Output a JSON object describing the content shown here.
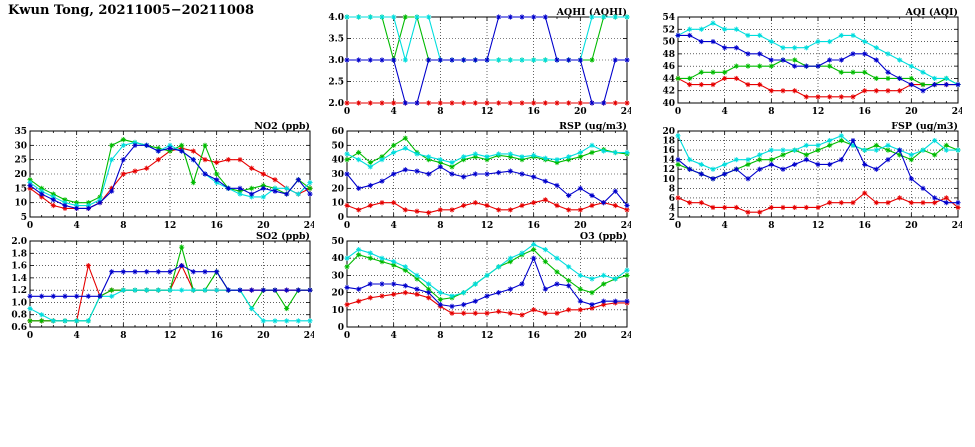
{
  "page": {
    "title": "Kwun Tong, 20211005−20211008"
  },
  "colors": {
    "red": "#e60000",
    "green": "#00bb00",
    "cyan": "#00dddd",
    "blue": "#0000cc"
  },
  "chart_data": [
    {
      "id": "aqhi",
      "type": "line",
      "title": "AQHI (AQHI)",
      "xlabel": "",
      "ylabel": "",
      "xlim": [
        0,
        24
      ],
      "xticks": [
        0,
        4,
        8,
        12,
        16,
        20,
        24
      ],
      "ylim": [
        2.0,
        4.0
      ],
      "yticks": [
        2.0,
        2.5,
        3.0,
        3.5,
        4.0
      ],
      "ydec": 1,
      "grid": true,
      "legend": "none",
      "series": [
        {
          "name": "red",
          "color": "#e60000",
          "values": [
            2,
            2,
            2,
            2,
            2,
            2,
            2,
            2,
            2,
            2,
            2,
            2,
            2,
            2,
            2,
            2,
            2,
            2,
            2,
            2,
            2,
            2,
            2,
            2,
            2
          ]
        },
        {
          "name": "green",
          "color": "#00bb00",
          "values": [
            4,
            4,
            4,
            4,
            3,
            4,
            4,
            3,
            3,
            3,
            3,
            3,
            3,
            3,
            3,
            3,
            3,
            3,
            3,
            3,
            3,
            3,
            4,
            4,
            4
          ]
        },
        {
          "name": "cyan",
          "color": "#00dddd",
          "values": [
            4,
            4,
            4,
            4,
            4,
            3,
            4,
            4,
            3,
            3,
            3,
            3,
            3,
            3,
            3,
            3,
            3,
            3,
            3,
            3,
            3,
            4,
            4,
            4,
            4
          ]
        },
        {
          "name": "blue",
          "color": "#0000cc",
          "values": [
            3,
            3,
            3,
            3,
            3,
            2,
            2,
            3,
            3,
            3,
            3,
            3,
            3,
            4,
            4,
            4,
            4,
            4,
            3,
            3,
            3,
            2,
            2,
            3,
            3
          ]
        }
      ]
    },
    {
      "id": "aqi",
      "type": "line",
      "title": "AQI (AQI)",
      "xlabel": "",
      "ylabel": "",
      "xlim": [
        0,
        24
      ],
      "xticks": [
        0,
        4,
        8,
        12,
        16,
        20,
        24
      ],
      "ylim": [
        40,
        54
      ],
      "yticks": [
        40,
        42,
        44,
        46,
        48,
        50,
        52,
        54
      ],
      "ydec": 0,
      "grid": true,
      "legend": "none",
      "series": [
        {
          "name": "red",
          "color": "#e60000",
          "values": [
            44,
            43,
            43,
            43,
            44,
            44,
            43,
            43,
            42,
            42,
            42,
            41,
            41,
            41,
            41,
            41,
            42,
            42,
            42,
            42,
            43,
            43,
            43,
            43,
            43
          ]
        },
        {
          "name": "green",
          "color": "#00bb00",
          "values": [
            44,
            44,
            45,
            45,
            45,
            46,
            46,
            46,
            46,
            47,
            47,
            46,
            46,
            46,
            45,
            45,
            45,
            44,
            44,
            44,
            44,
            43,
            43,
            44,
            43
          ]
        },
        {
          "name": "cyan",
          "color": "#00dddd",
          "values": [
            51,
            52,
            52,
            53,
            52,
            52,
            51,
            51,
            50,
            49,
            49,
            49,
            50,
            50,
            51,
            51,
            50,
            49,
            48,
            47,
            46,
            45,
            44,
            44,
            43
          ]
        },
        {
          "name": "blue",
          "color": "#0000cc",
          "values": [
            51,
            51,
            50,
            50,
            49,
            49,
            48,
            48,
            47,
            47,
            46,
            46,
            46,
            47,
            47,
            48,
            48,
            47,
            45,
            44,
            43,
            42,
            43,
            43,
            43
          ]
        }
      ]
    },
    {
      "id": "no2",
      "type": "line",
      "title": "NO2 (ppb)",
      "xlabel": "",
      "ylabel": "",
      "xlim": [
        0,
        24
      ],
      "xticks": [
        0,
        4,
        8,
        12,
        16,
        20,
        24
      ],
      "ylim": [
        5,
        35
      ],
      "yticks": [
        5,
        10,
        15,
        20,
        25,
        30,
        35
      ],
      "ydec": 0,
      "grid": true,
      "legend": "none",
      "series": [
        {
          "name": "red",
          "color": "#e60000",
          "values": [
            15,
            12,
            9,
            8,
            8,
            8,
            10,
            15,
            20,
            21,
            22,
            25,
            28,
            29,
            28,
            25,
            24,
            25,
            25,
            22,
            20,
            18,
            15,
            13,
            15
          ]
        },
        {
          "name": "green",
          "color": "#00bb00",
          "values": [
            18,
            15,
            13,
            11,
            10,
            10,
            12,
            30,
            32,
            31,
            30,
            29,
            28,
            30,
            17,
            30,
            20,
            15,
            14,
            15,
            16,
            15,
            13,
            18,
            15
          ]
        },
        {
          "name": "cyan",
          "color": "#00dddd",
          "values": [
            17,
            14,
            12,
            10,
            9,
            9,
            11,
            25,
            30,
            31,
            30,
            28,
            30,
            28,
            25,
            20,
            17,
            15,
            13,
            12,
            12,
            15,
            15,
            13,
            17
          ]
        },
        {
          "name": "blue",
          "color": "#0000cc",
          "values": [
            16,
            13,
            11,
            9,
            8,
            8,
            10,
            14,
            25,
            30,
            30,
            28,
            29,
            28,
            25,
            20,
            18,
            15,
            15,
            13,
            15,
            14,
            13,
            18,
            13
          ]
        }
      ]
    },
    {
      "id": "rsp",
      "type": "line",
      "title": "RSP (ug/m3)",
      "xlabel": "",
      "ylabel": "",
      "xlim": [
        0,
        24
      ],
      "xticks": [
        0,
        4,
        8,
        12,
        16,
        20,
        24
      ],
      "ylim": [
        0,
        60
      ],
      "yticks": [
        0,
        10,
        20,
        30,
        40,
        50,
        60
      ],
      "ydec": 0,
      "grid": true,
      "legend": "none",
      "series": [
        {
          "name": "red",
          "color": "#e60000",
          "values": [
            8,
            5,
            8,
            10,
            10,
            5,
            4,
            3,
            5,
            5,
            8,
            10,
            8,
            5,
            5,
            8,
            10,
            12,
            8,
            5,
            5,
            8,
            10,
            8,
            5
          ]
        },
        {
          "name": "green",
          "color": "#00bb00",
          "values": [
            40,
            45,
            38,
            42,
            50,
            55,
            45,
            40,
            38,
            35,
            40,
            42,
            40,
            43,
            42,
            40,
            42,
            40,
            38,
            40,
            42,
            45,
            47,
            45,
            44
          ]
        },
        {
          "name": "cyan",
          "color": "#00dddd",
          "values": [
            44,
            40,
            35,
            40,
            45,
            48,
            44,
            42,
            40,
            38,
            42,
            44,
            42,
            44,
            44,
            42,
            43,
            41,
            40,
            42,
            45,
            50,
            46,
            45,
            45
          ]
        },
        {
          "name": "blue",
          "color": "#0000cc",
          "values": [
            30,
            20,
            22,
            25,
            30,
            33,
            32,
            30,
            35,
            30,
            28,
            30,
            30,
            31,
            32,
            30,
            28,
            25,
            22,
            15,
            20,
            15,
            10,
            18,
            8
          ]
        }
      ]
    },
    {
      "id": "fsp",
      "type": "line",
      "title": "FSP (ug/m3)",
      "xlabel": "",
      "ylabel": "",
      "xlim": [
        0,
        24
      ],
      "xticks": [
        0,
        4,
        8,
        12,
        16,
        20,
        24
      ],
      "ylim": [
        2,
        20
      ],
      "yticks": [
        2,
        4,
        6,
        8,
        10,
        12,
        14,
        16,
        18,
        20
      ],
      "ydec": 0,
      "grid": true,
      "legend": "none",
      "series": [
        {
          "name": "red",
          "color": "#e60000",
          "values": [
            6,
            5,
            5,
            4,
            4,
            4,
            3,
            3,
            4,
            4,
            4,
            4,
            4,
            5,
            5,
            5,
            7,
            5,
            5,
            6,
            5,
            5,
            5,
            6,
            4
          ]
        },
        {
          "name": "green",
          "color": "#00bb00",
          "values": [
            13,
            12,
            11,
            10,
            11,
            12,
            13,
            14,
            14,
            15,
            16,
            15,
            16,
            17,
            18,
            17,
            16,
            17,
            16,
            15,
            14,
            16,
            15,
            17,
            16
          ]
        },
        {
          "name": "cyan",
          "color": "#00dddd",
          "values": [
            19,
            14,
            13,
            12,
            13,
            14,
            14,
            15,
            16,
            16,
            16,
            17,
            17,
            18,
            19,
            17,
            16,
            16,
            17,
            16,
            15,
            16,
            18,
            16,
            16
          ]
        },
        {
          "name": "blue",
          "color": "#0000cc",
          "values": [
            14,
            12,
            11,
            10,
            11,
            12,
            10,
            12,
            13,
            12,
            13,
            14,
            13,
            13,
            14,
            18,
            13,
            12,
            14,
            16,
            10,
            8,
            6,
            5,
            5
          ]
        }
      ]
    },
    {
      "id": "so2",
      "type": "line",
      "title": "SO2 (ppb)",
      "xlabel": "",
      "ylabel": "",
      "xlim": [
        0,
        24
      ],
      "xticks": [
        0,
        4,
        8,
        12,
        16,
        20,
        24
      ],
      "ylim": [
        0.6,
        2.0
      ],
      "yticks": [
        0.6,
        0.8,
        1.0,
        1.2,
        1.4,
        1.6,
        1.8,
        2.0
      ],
      "ydec": 1,
      "grid": true,
      "legend": "none",
      "series": [
        {
          "name": "red",
          "color": "#e60000",
          "values": [
            0.7,
            0.7,
            0.7,
            0.7,
            0.7,
            1.6,
            1.1,
            1.2,
            1.2,
            1.2,
            1.2,
            1.2,
            1.2,
            1.6,
            1.2,
            1.2,
            1.2,
            1.2,
            1.2,
            1.2,
            1.2,
            1.2,
            1.2,
            1.2,
            1.2
          ]
        },
        {
          "name": "green",
          "color": "#00bb00",
          "values": [
            0.7,
            0.7,
            0.7,
            0.7,
            0.7,
            0.7,
            1.1,
            1.2,
            1.2,
            1.2,
            1.2,
            1.2,
            1.2,
            1.9,
            1.2,
            1.2,
            1.5,
            1.2,
            1.2,
            0.9,
            1.2,
            1.2,
            0.9,
            1.2,
            1.2
          ]
        },
        {
          "name": "cyan",
          "color": "#00dddd",
          "values": [
            0.9,
            0.8,
            0.7,
            0.7,
            0.7,
            0.7,
            1.1,
            1.1,
            1.2,
            1.2,
            1.2,
            1.2,
            1.2,
            1.2,
            1.2,
            1.2,
            1.2,
            1.2,
            1.2,
            0.9,
            0.7,
            0.7,
            0.7,
            0.7,
            0.7
          ]
        },
        {
          "name": "blue",
          "color": "#0000cc",
          "values": [
            1.1,
            1.1,
            1.1,
            1.1,
            1.1,
            1.1,
            1.1,
            1.5,
            1.5,
            1.5,
            1.5,
            1.5,
            1.5,
            1.6,
            1.5,
            1.5,
            1.5,
            1.2,
            1.2,
            1.2,
            1.2,
            1.2,
            1.2,
            1.2,
            1.2
          ]
        }
      ]
    },
    {
      "id": "o3",
      "type": "line",
      "title": "O3 (ppb)",
      "xlabel": "",
      "ylabel": "",
      "xlim": [
        0,
        24
      ],
      "xticks": [
        0,
        4,
        8,
        12,
        16,
        20,
        24
      ],
      "ylim": [
        0,
        50
      ],
      "yticks": [
        0,
        10,
        20,
        30,
        40,
        50
      ],
      "ydec": 0,
      "grid": true,
      "legend": "none",
      "series": [
        {
          "name": "red",
          "color": "#e60000",
          "values": [
            13,
            15,
            17,
            18,
            19,
            20,
            19,
            17,
            12,
            8,
            8,
            8,
            8,
            9,
            8,
            7,
            10,
            8,
            8,
            10,
            10,
            11,
            13,
            14,
            14
          ]
        },
        {
          "name": "green",
          "color": "#00bb00",
          "values": [
            35,
            42,
            40,
            38,
            36,
            33,
            28,
            22,
            16,
            17,
            20,
            25,
            30,
            35,
            38,
            42,
            45,
            38,
            32,
            27,
            22,
            20,
            25,
            28,
            30
          ]
        },
        {
          "name": "cyan",
          "color": "#00dddd",
          "values": [
            40,
            45,
            43,
            40,
            38,
            35,
            30,
            25,
            20,
            18,
            20,
            25,
            30,
            35,
            40,
            43,
            48,
            45,
            40,
            35,
            30,
            28,
            30,
            28,
            33
          ]
        },
        {
          "name": "blue",
          "color": "#0000cc",
          "values": [
            23,
            22,
            25,
            25,
            25,
            24,
            22,
            20,
            13,
            12,
            13,
            15,
            18,
            20,
            22,
            25,
            40,
            22,
            25,
            24,
            15,
            13,
            15,
            15,
            15
          ]
        }
      ]
    }
  ]
}
